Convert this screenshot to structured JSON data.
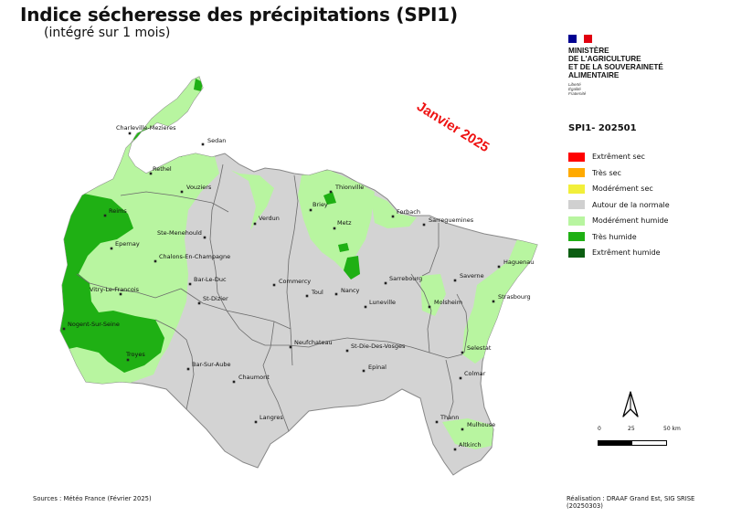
{
  "title": "Indice sécheresse des précipitations (SPI1)",
  "subtitle": "(intégré sur 1 mois)",
  "date_stamp": "Janvier 2025",
  "ministry": {
    "name_lines": [
      "MINISTÈRE",
      "DE L'AGRICULTURE",
      "ET DE LA SOUVERAINETÉ",
      "ALIMENTAIRE"
    ],
    "motto": [
      "Liberté",
      "Égalité",
      "Fraternité"
    ],
    "flag_colors": [
      "#000091",
      "#ffffff",
      "#e1000f"
    ]
  },
  "legend": {
    "title": "SPI1- 202501",
    "items": [
      {
        "label": "Extrêment sec",
        "color": "#ff0000"
      },
      {
        "label": "Très sec",
        "color": "#ffaa00"
      },
      {
        "label": "Modérément sec",
        "color": "#f2ef3a"
      },
      {
        "label": "Autour de la normale",
        "color": "#d0d0d0"
      },
      {
        "label": "Modérément humide",
        "color": "#b8f5a0"
      },
      {
        "label": "Très humide",
        "color": "#1fb014"
      },
      {
        "label": "Extrêment humide",
        "color": "#0c5e12"
      }
    ]
  },
  "cities": [
    "Charleville-Mezieres",
    "Sedan",
    "Rethel",
    "Vouziers",
    "Reims",
    "Verdun",
    "Thionville",
    "Briey",
    "Metz",
    "Forbach",
    "Sarreguemines",
    "Ste-Menehould",
    "Epernay",
    "Chalons-En-Champagne",
    "Bar-Le-Duc",
    "Commercy",
    "Toul",
    "Nancy",
    "Luneville",
    "Sarrebourg",
    "Saverne",
    "Haguenau",
    "Strasbourg",
    "Vitry-Le-Francois",
    "St-Dizier",
    "Molsheim",
    "Nogent-Sur-Seine",
    "Neufchateau",
    "St-Die-Des-Vosges",
    "Selestat",
    "Troyes",
    "Bar-Sur-Aube",
    "Epinal",
    "Colmar",
    "Chaumont",
    "Langres",
    "Thann",
    "Mulhouse",
    "Altkirch"
  ],
  "scale": {
    "labels": [
      "0",
      "25",
      "50 km"
    ]
  },
  "north_arrow": "north-arrow-icon",
  "sources": "Sources : Météo France (Février 2025)",
  "credit": "Réalisation : DRAAF Grand Est, SIG SRISE (20250303)"
}
